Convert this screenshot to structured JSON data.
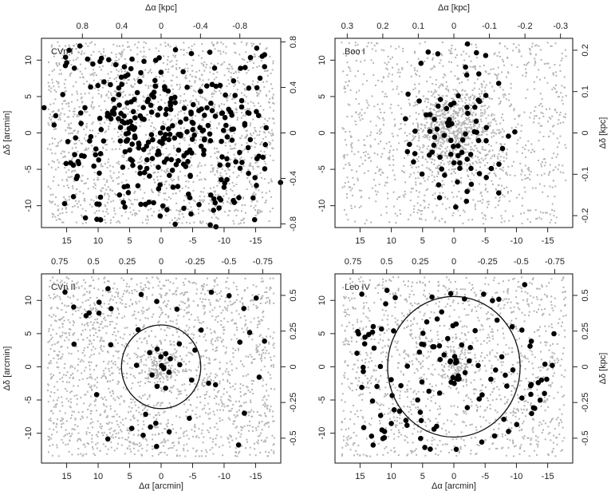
{
  "chart_data": [
    {
      "type": "scatter",
      "panel_label": "CVn I",
      "xlim": [
        19,
        -19
      ],
      "ylim": [
        -13,
        13
      ],
      "x_ticks": [
        "15",
        "10",
        "5",
        "0",
        "-5",
        "-10",
        "-15"
      ],
      "y_ticks": [
        "-10",
        "-5",
        "0",
        "5",
        "10"
      ],
      "top_ticks": [
        "0.8",
        "0.4",
        "0",
        "-0.4",
        "-0.8"
      ],
      "right_ticks": [
        "-0.8",
        "-0.4",
        "0",
        "0.4",
        "0.8"
      ],
      "kpc_per_arcmin": 0.064,
      "xlabel_top": "Δα [kpc]",
      "ylabel_left": "Δδ [arcmin]",
      "xlabel_bottom": "",
      "ylabel_right": "",
      "circle_radius": null,
      "n_field": 1800,
      "field_xr": 18,
      "field_yr": 12.5,
      "n_members": 330,
      "members_sx": 7.5,
      "members_sy": 5,
      "members_tilt": 0.2,
      "members_uniform": true,
      "n_core": 0,
      "core_s": 1,
      "grey_color": "#b4b4b4",
      "member_color": "#000000"
    },
    {
      "type": "scatter",
      "panel_label": "Boo I",
      "xlim": [
        19,
        -19
      ],
      "ylim": [
        -13,
        13
      ],
      "x_ticks": [
        "15",
        "10",
        "5",
        "0",
        "-5",
        "-10",
        "-15"
      ],
      "y_ticks": [
        "-10",
        "-5",
        "0",
        "5",
        "10"
      ],
      "top_ticks": [
        "0.3",
        "0.2",
        "0.1",
        "0",
        "-0.1",
        "-0.2",
        "-0.3"
      ],
      "right_ticks": [
        "-0.2",
        "-0.1",
        "0",
        "0.1",
        "0.2"
      ],
      "kpc_per_arcmin": 0.0176,
      "xlabel_top": "Δα [kpc]",
      "ylabel_left": "",
      "xlabel_bottom": "",
      "ylabel_right": "Δδ [kpc]",
      "circle_radius": null,
      "n_field": 1100,
      "field_xr": 18,
      "field_yr": 12.5,
      "n_members": 85,
      "members_sx": 4,
      "members_sy": 5,
      "members_tilt": 0,
      "members_uniform": false,
      "n_core": 700,
      "core_s": 3.2,
      "grey_color": "#b4b4b4",
      "member_color": "#000000"
    },
    {
      "type": "scatter",
      "panel_label": "CVn II",
      "xlim": [
        19,
        -19
      ],
      "ylim": [
        -14.5,
        14
      ],
      "x_ticks": [
        "15",
        "10",
        "5",
        "0",
        "-5",
        "-10",
        "-15"
      ],
      "y_ticks": [
        "-10",
        "-5",
        "0",
        "5",
        "10"
      ],
      "top_ticks": [
        "0.75",
        "0.5",
        "0.25",
        "0",
        "-0.25",
        "-0.5",
        "-0.75"
      ],
      "right_ticks": [
        "-0.5",
        "-0.25",
        "0",
        "0.25",
        "0.5"
      ],
      "kpc_per_arcmin": 0.0465,
      "xlabel_top": "",
      "ylabel_left": "Δδ [arcmin]",
      "xlabel_bottom": "Δα [arcmin]",
      "ylabel_right": "",
      "circle_radius": 6.3,
      "n_field": 1900,
      "field_xr": 18,
      "field_yr": 13.5,
      "n_members": 45,
      "members_sx": 0,
      "members_sy": 0,
      "members_tilt": 0,
      "members_uniform": true,
      "n_core": 130,
      "core_s": 1.2,
      "grey_color": "#b4b4b4",
      "member_color": "#000000"
    },
    {
      "type": "scatter",
      "panel_label": "Leo IV",
      "xlim": [
        19,
        -19
      ],
      "ylim": [
        -14.5,
        14
      ],
      "x_ticks": [
        "15",
        "10",
        "5",
        "0",
        "-5",
        "-10",
        "-15"
      ],
      "y_ticks": [
        "-10",
        "-5",
        "0",
        "5",
        "10"
      ],
      "top_ticks": [
        "0.75",
        "0.5",
        "0.25",
        "0",
        "-0.25",
        "-0.5",
        "-0.75"
      ],
      "right_ticks": [
        "-0.5",
        "-0.25",
        "0",
        "0.25",
        "0.5"
      ],
      "kpc_per_arcmin": 0.0465,
      "xlabel_top": "",
      "ylabel_left": "",
      "xlabel_bottom": "Δα [arcmin]",
      "ylabel_right": "Δδ [kpc]",
      "circle_radius": 10.6,
      "n_field": 1400,
      "field_xr": 18,
      "field_yr": 13.5,
      "n_members": 110,
      "members_sx": 0,
      "members_sy": 0,
      "members_tilt": 0,
      "members_uniform": true,
      "n_core": 90,
      "core_s": 1.3,
      "grey_color": "#b4b4b4",
      "member_color": "#000000"
    }
  ]
}
